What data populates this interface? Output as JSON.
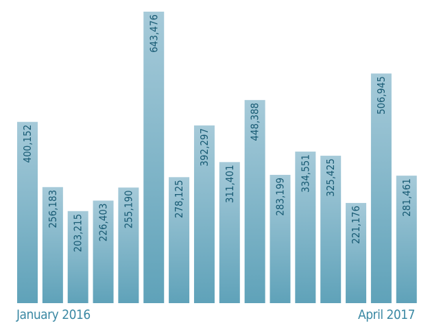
{
  "chart_data": {
    "type": "bar",
    "categories": [
      "January 2016",
      "",
      "",
      "",
      "",
      "",
      "",
      "",
      "",
      "",
      "",
      "",
      "",
      "",
      "",
      "April 2017"
    ],
    "values": [
      400152,
      256183,
      203215,
      226403,
      255190,
      643476,
      278125,
      392297,
      311401,
      448388,
      283199,
      334551,
      325425,
      221176,
      506945,
      281461
    ],
    "data_labels": [
      "400,152",
      "256,183",
      "203,215",
      "226,403",
      "255,190",
      "643,476",
      "278,125",
      "392,297",
      "311,401",
      "448,388",
      "283,199",
      "334,551",
      "325,425",
      "221,176",
      "506,945",
      "281,461"
    ],
    "x_start_label": "January 2016",
    "x_end_label": "April 2017",
    "title": "",
    "xlabel": "",
    "ylabel": "",
    "ylim": [
      0,
      643476
    ],
    "grid": false,
    "legend": "none",
    "colors": {
      "bar_top": "#a6cad9",
      "bar_bottom": "#5fa2b9",
      "label_text": "#175a73",
      "axis_label": "#3a88a3"
    }
  }
}
